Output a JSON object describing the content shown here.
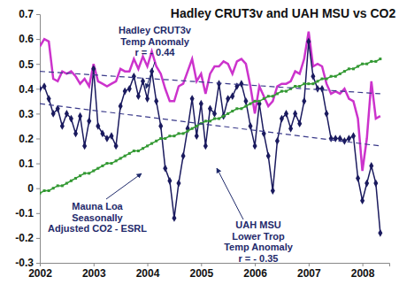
{
  "chart_data": {
    "type": "line",
    "title": "Hadley CRUT3v and UAH MSU vs CO2",
    "annotations": [
      [
        "Hadley CRUT3v",
        "Temp Anomaly",
        "r = - 0.44"
      ],
      [
        "Mauna Loa",
        "Seasonally",
        "Adjusted CO2 - ESRL"
      ],
      [
        "UAH MSU",
        "Lower Trop",
        "Temp Anomaly",
        "r = - 0.35"
      ]
    ],
    "x": [
      2002,
      2002.083,
      2002.167,
      2002.25,
      2002.333,
      2002.417,
      2002.5,
      2002.583,
      2002.667,
      2002.75,
      2002.833,
      2002.917,
      2003,
      2003.083,
      2003.167,
      2003.25,
      2003.333,
      2003.417,
      2003.5,
      2003.583,
      2003.667,
      2003.75,
      2003.833,
      2003.917,
      2004,
      2004.083,
      2004.167,
      2004.25,
      2004.333,
      2004.417,
      2004.5,
      2004.583,
      2004.667,
      2004.75,
      2004.833,
      2004.917,
      2005,
      2005.083,
      2005.167,
      2005.25,
      2005.333,
      2005.417,
      2005.5,
      2005.583,
      2005.667,
      2005.75,
      2005.833,
      2005.917,
      2006,
      2006.083,
      2006.167,
      2006.25,
      2006.333,
      2006.417,
      2006.5,
      2006.583,
      2006.667,
      2006.75,
      2006.833,
      2006.917,
      2007,
      2007.083,
      2007.167,
      2007.25,
      2007.333,
      2007.417,
      2007.5,
      2007.583,
      2007.667,
      2007.75,
      2007.833,
      2007.917,
      2008,
      2008.083,
      2008.167,
      2008.25,
      2008.333
    ],
    "series": [
      {
        "color": "#cc33cc",
        "line_style": "solid",
        "values": [
          0.57,
          0.6,
          0.59,
          0.44,
          0.43,
          0.47,
          0.46,
          0.47,
          0.45,
          0.42,
          0.44,
          0.41,
          0.5,
          0.43,
          0.42,
          0.41,
          0.42,
          0.43,
          0.48,
          0.47,
          0.47,
          0.52,
          0.48,
          0.53,
          0.49,
          0.55,
          0.49,
          0.46,
          0.4,
          0.35,
          0.35,
          0.41,
          0.42,
          0.47,
          0.52,
          0.43,
          0.46,
          0.38,
          0.46,
          0.49,
          0.49,
          0.51,
          0.5,
          0.46,
          0.51,
          0.52,
          0.5,
          0.41,
          0.3,
          0.41,
          0.37,
          0.33,
          0.35,
          0.41,
          0.42,
          0.42,
          0.43,
          0.47,
          0.46,
          0.52,
          0.63,
          0.49,
          0.5,
          0.49,
          0.42,
          0.38,
          0.39,
          0.38,
          0.4,
          0.36,
          0.35,
          0.28,
          0.07,
          0.2,
          0.43,
          0.28,
          0.29
        ]
      },
      {
        "color": "#1a1a5e",
        "line_style": "solid",
        "marker": "diamond",
        "values": [
          0.4,
          0.41,
          0.36,
          0.3,
          0.32,
          0.25,
          0.3,
          0.28,
          0.22,
          0.29,
          0.17,
          0.27,
          0.48,
          0.25,
          0.22,
          0.2,
          0.21,
          0.17,
          0.33,
          0.39,
          0.4,
          0.45,
          0.37,
          0.43,
          0.36,
          0.47,
          0.35,
          0.25,
          0.08,
          0.03,
          -0.12,
          0.02,
          0.13,
          0.24,
          0.36,
          0.21,
          0.34,
          0.17,
          0.32,
          0.3,
          0.42,
          0.29,
          0.36,
          0.37,
          0.41,
          0.42,
          0.35,
          0.25,
          0.17,
          0.34,
          0.22,
          0.13,
          -0.01,
          0.19,
          0.28,
          0.3,
          0.24,
          0.3,
          0.26,
          0.35,
          0.59,
          0.45,
          0.4,
          0.4,
          0.3,
          0.2,
          0.2,
          0.2,
          0.19,
          0.2,
          0.21,
          0.04,
          -0.05,
          0.02,
          0.09,
          0.02,
          -0.18
        ]
      },
      {
        "color": "#339933",
        "line_style": "solid",
        "marker": "square",
        "values": [
          -0.02,
          -0.01,
          -0.01,
          0.0,
          0.01,
          0.01,
          0.02,
          0.03,
          0.04,
          0.05,
          0.06,
          0.06,
          0.07,
          0.08,
          0.09,
          0.1,
          0.1,
          0.11,
          0.12,
          0.13,
          0.14,
          0.15,
          0.15,
          0.16,
          0.17,
          0.18,
          0.19,
          0.2,
          0.2,
          0.21,
          0.21,
          0.22,
          0.22,
          0.23,
          0.24,
          0.25,
          0.26,
          0.27,
          0.27,
          0.28,
          0.28,
          0.29,
          0.3,
          0.31,
          0.32,
          0.32,
          0.33,
          0.34,
          0.35,
          0.35,
          0.36,
          0.37,
          0.37,
          0.38,
          0.39,
          0.39,
          0.4,
          0.41,
          0.41,
          0.42,
          0.42,
          0.42,
          0.43,
          0.44,
          0.44,
          0.45,
          0.45,
          0.46,
          0.47,
          0.48,
          0.48,
          0.49,
          0.5,
          0.5,
          0.51,
          0.51,
          0.52
        ]
      },
      {
        "color": "#3a3a8a",
        "line_style": "dashed",
        "x": [
          2002,
          2008.333
        ],
        "values": [
          0.47,
          0.38
        ]
      },
      {
        "color": "#3a3a8a",
        "line_style": "dashed",
        "x": [
          2002,
          2008.333
        ],
        "values": [
          0.34,
          0.17
        ]
      }
    ],
    "xlim": [
      2002,
      2008.5
    ],
    "xticks": [
      2002,
      2003,
      2004,
      2005,
      2006,
      2007,
      2008
    ],
    "ylim": [
      -0.3,
      0.7
    ],
    "yticks": [
      -0.3,
      -0.2,
      -0.1,
      0,
      0.1,
      0.2,
      0.3,
      0.4,
      0.5,
      0.6,
      0.7
    ],
    "grid": false
  }
}
